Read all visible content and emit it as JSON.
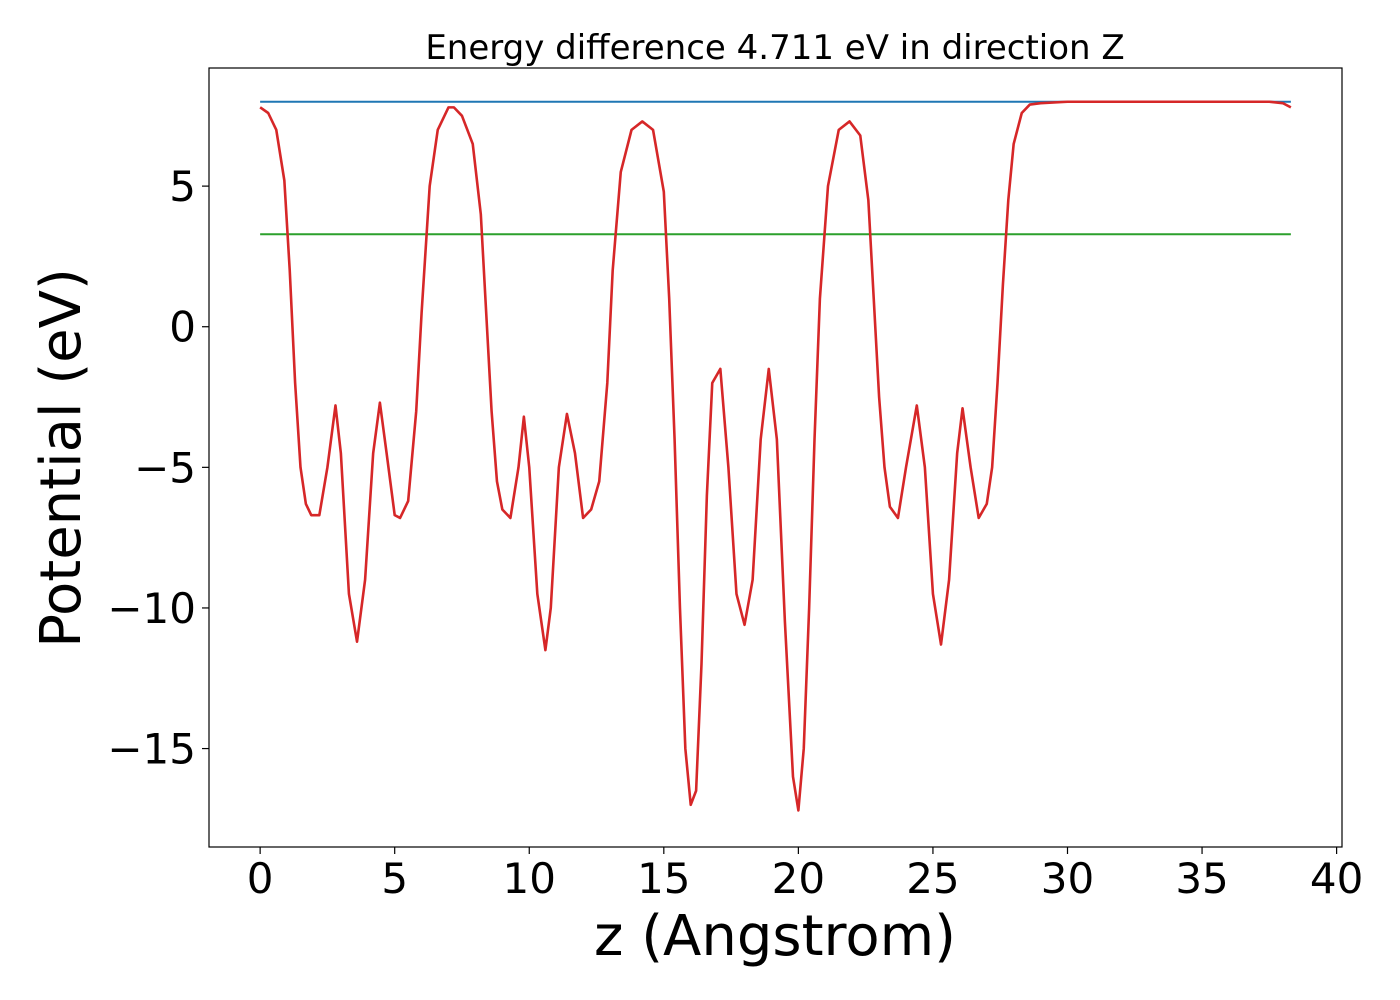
{
  "chart_data": {
    "type": "line",
    "title": "Energy difference 4.711 eV in direction Z",
    "xlabel": "z (Angstrom)",
    "ylabel": "Potential (eV)",
    "xlim": [
      -1.9,
      40.2
    ],
    "ylim": [
      -18.5,
      9.2
    ],
    "xticks": [
      0,
      5,
      10,
      15,
      20,
      25,
      30,
      35,
      40
    ],
    "yticks": [
      -15,
      -10,
      -5,
      0,
      5
    ],
    "ytick_labels": [
      "−15",
      "−10",
      "−5",
      "0",
      "5"
    ],
    "grid": false,
    "legend": "none",
    "series": [
      {
        "color": "#1f77b4",
        "x": [
          0,
          38.3
        ],
        "y": [
          8.0,
          8.0
        ]
      },
      {
        "color": "#2ca02c",
        "x": [
          0,
          38.3
        ],
        "y": [
          3.29,
          3.29
        ]
      },
      {
        "color": "#d62728",
        "x": [
          0,
          0.3,
          0.6,
          0.9,
          1.1,
          1.3,
          1.5,
          1.7,
          1.9,
          2.2,
          2.5,
          2.8,
          3.0,
          3.3,
          3.6,
          3.9,
          4.2,
          4.45,
          4.7,
          5.0,
          5.2,
          5.5,
          5.8,
          6.0,
          6.3,
          6.6,
          7.0,
          7.2,
          7.5,
          7.9,
          8.2,
          8.4,
          8.6,
          8.8,
          9.0,
          9.3,
          9.6,
          9.8,
          10.0,
          10.3,
          10.6,
          10.8,
          11.1,
          11.4,
          11.7,
          12.0,
          12.3,
          12.6,
          12.9,
          13.1,
          13.4,
          13.8,
          14.2,
          14.6,
          15.0,
          15.2,
          15.4,
          15.6,
          15.8,
          16.0,
          16.2,
          16.4,
          16.6,
          16.8,
          17.1,
          17.4,
          17.7,
          18.0,
          18.3,
          18.6,
          18.9,
          19.2,
          19.5,
          19.8,
          20.0,
          20.2,
          20.4,
          20.6,
          20.8,
          21.1,
          21.5,
          21.9,
          22.3,
          22.6,
          22.8,
          23.0,
          23.2,
          23.4,
          23.7,
          24.0,
          24.4,
          24.7,
          25.0,
          25.3,
          25.6,
          25.9,
          26.1,
          26.4,
          26.7,
          27.0,
          27.2,
          27.4,
          27.6,
          27.8,
          28.0,
          28.3,
          28.6,
          29.0,
          30.0,
          32.0,
          34.0,
          36.0,
          37.5,
          38.0,
          38.3
        ],
        "y": [
          7.8,
          7.6,
          7.0,
          5.2,
          2.0,
          -2.0,
          -5.0,
          -6.3,
          -6.7,
          -6.7,
          -5.0,
          -2.8,
          -4.5,
          -9.5,
          -11.2,
          -9.0,
          -4.5,
          -2.7,
          -4.5,
          -6.7,
          -6.8,
          -6.2,
          -3.0,
          0.5,
          5.0,
          7.0,
          7.8,
          7.8,
          7.5,
          6.5,
          4.0,
          0.5,
          -3.0,
          -5.5,
          -6.5,
          -6.8,
          -5.0,
          -3.2,
          -5.0,
          -9.5,
          -11.5,
          -10.0,
          -5.0,
          -3.1,
          -4.5,
          -6.8,
          -6.5,
          -5.5,
          -2.0,
          2.0,
          5.5,
          7.0,
          7.3,
          7.0,
          4.8,
          1.0,
          -4.0,
          -10.0,
          -15.0,
          -17.0,
          -16.5,
          -12.0,
          -6.0,
          -2.0,
          -1.5,
          -5.0,
          -9.5,
          -10.6,
          -9.0,
          -4.0,
          -1.5,
          -4.0,
          -10.5,
          -16.0,
          -17.2,
          -15.0,
          -10.0,
          -4.0,
          1.0,
          5.0,
          7.0,
          7.3,
          6.8,
          4.5,
          1.0,
          -2.5,
          -5.0,
          -6.4,
          -6.8,
          -5.0,
          -2.8,
          -5.0,
          -9.5,
          -11.3,
          -9.0,
          -4.5,
          -2.9,
          -5.0,
          -6.8,
          -6.3,
          -5.0,
          -2.0,
          1.5,
          4.5,
          6.5,
          7.6,
          7.9,
          7.95,
          8.0,
          8.0,
          8.0,
          8.0,
          8.0,
          7.95,
          7.8
        ]
      }
    ]
  }
}
